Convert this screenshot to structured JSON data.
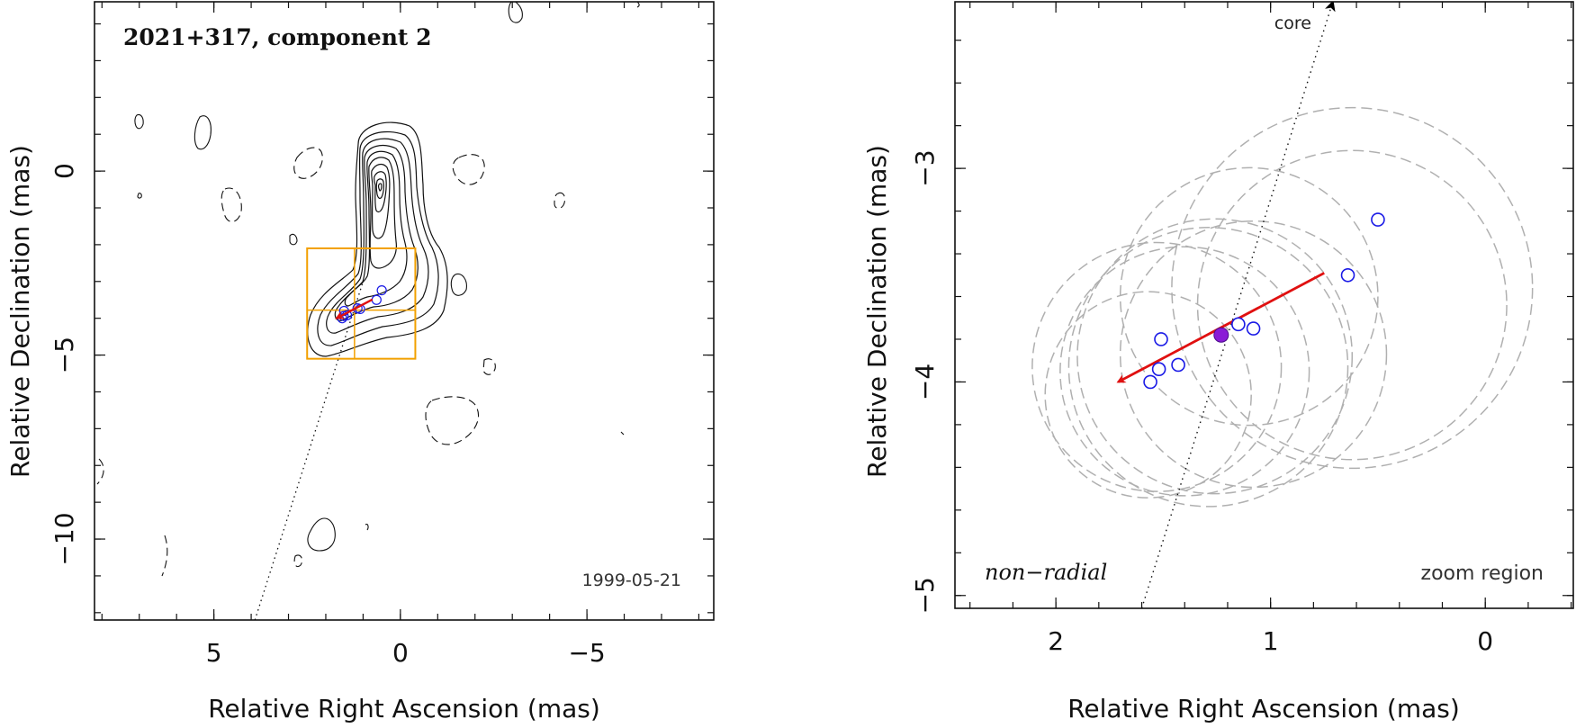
{
  "chart_data": [
    {
      "type": "contour",
      "title": "2021+317, component 2",
      "date_label": "1999-05-21",
      "xlabel": "Relative Right Ascension (mas)",
      "ylabel": "Relative Declination (mas)",
      "xlim": [
        8.2,
        -8.4
      ],
      "ylim": [
        -12.2,
        4.6
      ],
      "x_ticks": [
        5,
        0,
        -5
      ],
      "y_ticks": [
        0,
        -5,
        -10
      ],
      "tick_labels_x": [
        "5",
        "0",
        "−5"
      ],
      "tick_labels_y": [
        "0",
        "−5",
        "−10"
      ],
      "zoom_box": {
        "x": [
          2.5,
          -0.4
        ],
        "y": [
          -2.1,
          -5.1
        ],
        "center": [
          1.23,
          -3.78
        ]
      },
      "trajectory_arrow": {
        "from": [
          0.75,
          -3.49
        ],
        "to": [
          1.71,
          -4.0
        ]
      },
      "components": [
        [
          0.5,
          -3.24
        ],
        [
          0.64,
          -3.5
        ],
        [
          1.08,
          -3.75
        ],
        [
          1.15,
          -3.73
        ],
        [
          1.43,
          -3.92
        ],
        [
          1.52,
          -3.94
        ],
        [
          1.51,
          -3.8
        ],
        [
          1.56,
          -4.0
        ]
      ],
      "contours_note": "jet contours"
    },
    {
      "type": "scatter",
      "title": "",
      "xlabel": "Relative Right Ascension (mas)",
      "ylabel": "Relative Declination (mas)",
      "xlim": [
        2.47,
        -0.41
      ],
      "ylim": [
        -5.06,
        -2.22
      ],
      "x_ticks": [
        2,
        1,
        0
      ],
      "y_ticks": [
        -3,
        -4,
        -5
      ],
      "tick_labels_x": [
        "2",
        "1",
        "0"
      ],
      "tick_labels_y": [
        "−3",
        "−4",
        "−5"
      ],
      "core_label": "core",
      "left_label": "non−radial",
      "right_label": "zoom region",
      "components": [
        [
          0.5,
          -3.24
        ],
        [
          0.64,
          -3.5
        ],
        [
          1.08,
          -3.75
        ],
        [
          1.15,
          -3.73
        ],
        [
          1.43,
          -3.92
        ],
        [
          1.52,
          -3.94
        ],
        [
          1.51,
          -3.8
        ],
        [
          1.56,
          -4.0
        ]
      ],
      "mean_position": [
        1.23,
        -3.78
      ],
      "trajectory_arrow": {
        "from": [
          0.75,
          -3.49
        ],
        "to": [
          1.71,
          -4.0
        ]
      },
      "direction_line": {
        "from": [
          1.6,
          -5.06
        ],
        "to": [
          0.71,
          -2.22
        ]
      },
      "error_ellipses": [
        {
          "cx": 0.62,
          "cy": -3.56,
          "r": 0.84
        },
        {
          "cx": 0.62,
          "cy": -3.64,
          "r": 0.72
        },
        {
          "cx": 1.08,
          "cy": -3.87,
          "r": 0.62
        },
        {
          "cx": 1.26,
          "cy": -3.88,
          "r": 0.64
        },
        {
          "cx": 1.29,
          "cy": -3.93,
          "r": 0.65
        },
        {
          "cx": 1.4,
          "cy": -3.95,
          "r": 0.58
        },
        {
          "cx": 1.53,
          "cy": -3.93,
          "r": 0.58
        },
        {
          "cx": 1.57,
          "cy": -4.06,
          "r": 0.48
        },
        {
          "cx": 1.1,
          "cy": -3.6,
          "r": 0.6
        }
      ],
      "colors": {
        "component": "#1a1ae6",
        "arrow": "#e01010",
        "mean": "#8a1bd6",
        "ellipse": "#b0b0b0",
        "box": "#f2a000"
      }
    }
  ]
}
